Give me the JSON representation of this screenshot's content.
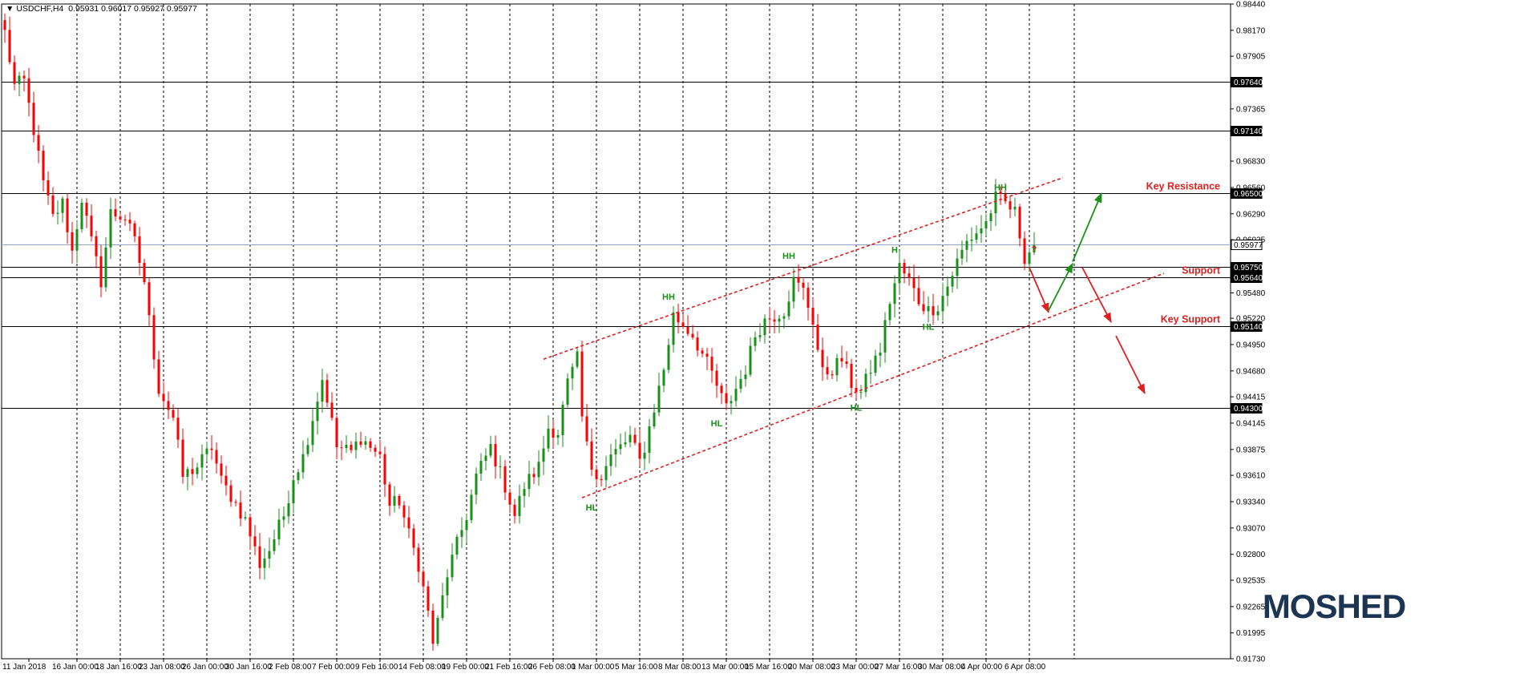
{
  "header": {
    "symbol": "USDCHF,H4",
    "ohlc": "0.95931 0.96017 0.95927 0.95977"
  },
  "logo": {
    "text": "MOSHED"
  },
  "colors": {
    "bull": "#1a8f1a",
    "bear": "#ff0000",
    "annotation_red": "#e02020",
    "annotation_green": "#1a8f1a",
    "grid": "#000000",
    "logo": "#1c3553"
  },
  "chart_data": {
    "type": "candlestick",
    "ylim": [
      0.9173,
      0.9844
    ],
    "x_count": 220,
    "grid": "dashed vertical",
    "y_ticks": [
      "0.98440",
      "0.98170",
      "0.97905",
      "0.97365",
      "0.96830",
      "0.96560",
      "0.96290",
      "0.96025",
      "0.95480",
      "0.95220",
      "0.94950",
      "0.94680",
      "0.94415",
      "0.94145",
      "0.93875",
      "0.93610",
      "0.93340",
      "0.93070",
      "0.92800",
      "0.92535",
      "0.92265",
      "0.91995",
      "0.91730"
    ],
    "x_ticks": [
      {
        "i": 0,
        "label": "11 Jan 2018"
      },
      {
        "i": 10,
        "label": "16 Jan 00:00"
      },
      {
        "i": 19,
        "label": "18 Jan 16:00"
      },
      {
        "i": 28,
        "label": "23 Jan 08:00"
      },
      {
        "i": 37,
        "label": "26 Jan 00:00"
      },
      {
        "i": 46,
        "label": "30 Jan 16:00"
      },
      {
        "i": 55,
        "label": "2 Feb 08:00"
      },
      {
        "i": 64,
        "label": "7 Feb 00:00"
      },
      {
        "i": 73,
        "label": "9 Feb 16:00"
      },
      {
        "i": 82,
        "label": "14 Feb 08:00"
      },
      {
        "i": 91,
        "label": "19 Feb 00:00"
      },
      {
        "i": 100,
        "label": "21 Feb 16:00"
      },
      {
        "i": 109,
        "label": "26 Feb 08:00"
      },
      {
        "i": 118,
        "label": "1 Mar 00:00"
      },
      {
        "i": 127,
        "label": "5 Mar 16:00"
      },
      {
        "i": 136,
        "label": "8 Mar 08:00"
      },
      {
        "i": 145,
        "label": "13 Mar 00:00"
      },
      {
        "i": 154,
        "label": "15 Mar 16:00"
      },
      {
        "i": 163,
        "label": "20 Mar 08:00"
      },
      {
        "i": 172,
        "label": "23 Mar 00:00"
      },
      {
        "i": 181,
        "label": "27 Mar 16:00"
      },
      {
        "i": 190,
        "label": "30 Mar 08:00"
      },
      {
        "i": 199,
        "label": "4 Apr 00:00"
      },
      {
        "i": 208,
        "label": "6 Apr 08:00"
      }
    ],
    "horizontal_levels": [
      {
        "value": 0.9764,
        "label": "0.97640",
        "name": ""
      },
      {
        "value": 0.9714,
        "label": "0.97140",
        "name": ""
      },
      {
        "value": 0.965,
        "label": "0.96500",
        "name": "Key Resistance"
      },
      {
        "value": 0.95977,
        "label": "0.95977",
        "name": "",
        "current": true
      },
      {
        "value": 0.9575,
        "label": "0.95750",
        "name": ""
      },
      {
        "value": 0.9564,
        "label": "0.95640",
        "name": "Support"
      },
      {
        "value": 0.9514,
        "label": "0.95140",
        "name": "Key Support"
      },
      {
        "value": 0.943,
        "label": "0.94300",
        "name": ""
      }
    ],
    "channel": {
      "upper": [
        [
          112,
          0.948
        ],
        [
          220,
          0.9666
        ]
      ],
      "lower": [
        [
          120,
          0.9338
        ],
        [
          241,
          0.9568
        ]
      ]
    },
    "swing_labels": [
      {
        "i": 138,
        "y": 0.9541,
        "text": "HH"
      },
      {
        "i": 122,
        "y": 0.9325,
        "text": "HL"
      },
      {
        "i": 148,
        "y": 0.9411,
        "text": "HL"
      },
      {
        "i": 163,
        "y": 0.9583,
        "text": "HH"
      },
      {
        "i": 177,
        "y": 0.9427,
        "text": "HL"
      },
      {
        "i": 185,
        "y": 0.9589,
        "text": "H"
      },
      {
        "i": 192,
        "y": 0.951,
        "text": "HL"
      },
      {
        "i": 207,
        "y": 0.9653,
        "text": "HH"
      }
    ],
    "question": {
      "i": 213,
      "y": 0.959,
      "text": "?"
    },
    "arrows": [
      {
        "color": "red",
        "from": [
          213,
          0.9574
        ],
        "to": [
          217,
          0.9528
        ]
      },
      {
        "color": "green",
        "from": [
          217,
          0.953
        ],
        "to": [
          222,
          0.9578
        ]
      },
      {
        "color": "green",
        "from": [
          222,
          0.958
        ],
        "to": [
          228,
          0.965
        ]
      },
      {
        "color": "red",
        "from": [
          224,
          0.9574
        ],
        "to": [
          230,
          0.9518
        ]
      },
      {
        "color": "red",
        "from": [
          231,
          0.9504
        ],
        "to": [
          237,
          0.9445
        ]
      }
    ],
    "anchors": [
      [
        0,
        0.9815
      ],
      [
        2,
        0.976
      ],
      [
        4,
        0.9765
      ],
      [
        6,
        0.9715
      ],
      [
        8,
        0.966
      ],
      [
        10,
        0.9625
      ],
      [
        12,
        0.964
      ],
      [
        14,
        0.959
      ],
      [
        16,
        0.9645
      ],
      [
        18,
        0.96
      ],
      [
        20,
        0.956
      ],
      [
        22,
        0.963
      ],
      [
        25,
        0.9625
      ],
      [
        27,
        0.96
      ],
      [
        29,
        0.956
      ],
      [
        30,
        0.952
      ],
      [
        32,
        0.945
      ],
      [
        35,
        0.942
      ],
      [
        37,
        0.936
      ],
      [
        40,
        0.937
      ],
      [
        43,
        0.939
      ],
      [
        45,
        0.9355
      ],
      [
        47,
        0.934
      ],
      [
        50,
        0.9315
      ],
      [
        53,
        0.927
      ],
      [
        55,
        0.9285
      ],
      [
        58,
        0.932
      ],
      [
        60,
        0.936
      ],
      [
        62,
        0.938
      ],
      [
        64,
        0.942
      ],
      [
        66,
        0.946
      ],
      [
        67,
        0.944
      ],
      [
        69,
        0.939
      ],
      [
        72,
        0.9385
      ],
      [
        74,
        0.94
      ],
      [
        76,
        0.939
      ],
      [
        78,
        0.938
      ],
      [
        80,
        0.933
      ],
      [
        82,
        0.9335
      ],
      [
        84,
        0.93
      ],
      [
        86,
        0.927
      ],
      [
        88,
        0.922
      ],
      [
        89,
        0.919
      ],
      [
        90,
        0.921
      ],
      [
        92,
        0.926
      ],
      [
        94,
        0.929
      ],
      [
        96,
        0.932
      ],
      [
        98,
        0.936
      ],
      [
        101,
        0.939
      ],
      [
        104,
        0.935
      ],
      [
        106,
        0.932
      ],
      [
        108,
        0.935
      ],
      [
        111,
        0.937
      ],
      [
        113,
        0.941
      ],
      [
        115,
        0.9405
      ],
      [
        117,
        0.9455
      ],
      [
        119,
        0.948
      ],
      [
        120,
        0.942
      ],
      [
        121,
        0.939
      ],
      [
        122,
        0.937
      ],
      [
        124,
        0.936
      ],
      [
        126,
        0.938
      ],
      [
        128,
        0.939
      ],
      [
        130,
        0.94
      ],
      [
        132,
        0.9375
      ],
      [
        133,
        0.939
      ],
      [
        135,
        0.943
      ],
      [
        137,
        0.947
      ],
      [
        139,
        0.9525
      ],
      [
        141,
        0.9515
      ],
      [
        143,
        0.9505
      ],
      [
        145,
        0.9485
      ],
      [
        147,
        0.9465
      ],
      [
        149,
        0.944
      ],
      [
        150,
        0.943
      ],
      [
        152,
        0.945
      ],
      [
        154,
        0.947
      ],
      [
        156,
        0.9505
      ],
      [
        158,
        0.952
      ],
      [
        160,
        0.9525
      ],
      [
        162,
        0.953
      ],
      [
        164,
        0.956
      ],
      [
        166,
        0.955
      ],
      [
        168,
        0.952
      ],
      [
        169,
        0.949
      ],
      [
        170,
        0.9465
      ],
      [
        172,
        0.947
      ],
      [
        174,
        0.948
      ],
      [
        176,
        0.9455
      ],
      [
        178,
        0.9445
      ],
      [
        180,
        0.947
      ],
      [
        182,
        0.949
      ],
      [
        184,
        0.954
      ],
      [
        186,
        0.9575
      ],
      [
        188,
        0.956
      ],
      [
        190,
        0.954
      ],
      [
        192,
        0.953
      ],
      [
        194,
        0.9535
      ],
      [
        196,
        0.9555
      ],
      [
        198,
        0.958
      ],
      [
        200,
        0.96
      ],
      [
        202,
        0.961
      ],
      [
        204,
        0.962
      ],
      [
        206,
        0.9645
      ],
      [
        208,
        0.964
      ],
      [
        210,
        0.963
      ],
      [
        212,
        0.9585
      ],
      [
        214,
        0.9597
      ]
    ]
  }
}
